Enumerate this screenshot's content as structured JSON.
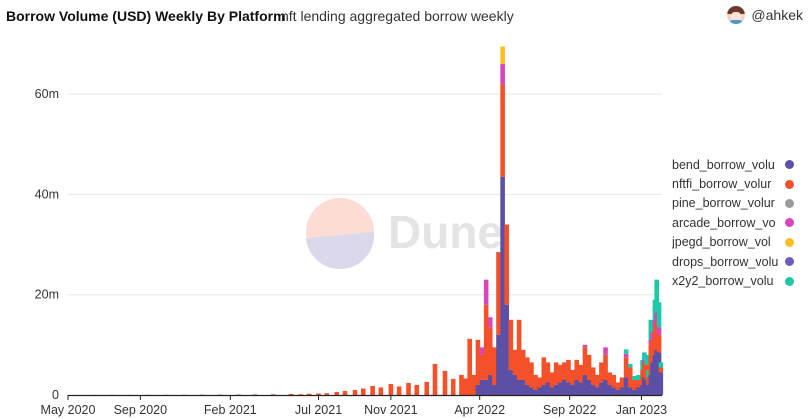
{
  "header": {
    "title": "Borrow Volume (USD) Weekly By Platform",
    "subtitle": "nft lending aggregated borrow weekly",
    "author": "@ahkek"
  },
  "watermark": "Dune",
  "colors": {
    "bend_borrow_volume": "#5b4fa6",
    "nftfi_borrow_volume": "#f4502a",
    "pine_borrow_volume": "#9b9b9b",
    "arcade_borrow_volume": "#d946b8",
    "jpegd_borrow_volume": "#fbbf24",
    "drops_borrow_volume": "#6b5bbf",
    "x2y2_borrow_volume": "#1cc8a6"
  },
  "chart_data": {
    "type": "bar",
    "stacked": true,
    "x_axis_ticks": [
      "May 2020",
      "Sep 2020",
      "Feb 2021",
      "Jul 2021",
      "Nov 2021",
      "Apr 2022",
      "Sep 2022",
      "Jan 2023"
    ],
    "y_axis_ticks": [
      "0",
      "20m",
      "40m",
      "60m"
    ],
    "ylim": [
      0,
      70000000
    ],
    "grid": "horizontal",
    "legend_position": "right",
    "series_order": [
      "bend_borrow_volume",
      "drops_borrow_volume",
      "nftfi_borrow_volume",
      "pine_borrow_volume",
      "arcade_borrow_volume",
      "jpegd_borrow_volume",
      "x2y2_borrow_volume"
    ],
    "legend": [
      {
        "key": "bend_borrow_volume",
        "label": "bend_borrow_volu"
      },
      {
        "key": "nftfi_borrow_volume",
        "label": "nftfi_borrow_volur"
      },
      {
        "key": "pine_borrow_volume",
        "label": "pine_borrow_volur"
      },
      {
        "key": "arcade_borrow_volume",
        "label": "arcade_borrow_vo"
      },
      {
        "key": "jpegd_borrow_volume",
        "label": "jpegd_borrow_vol"
      },
      {
        "key": "drops_borrow_volume",
        "label": "drops_borrow_volu"
      },
      {
        "key": "x2y2_borrow_volume",
        "label": "x2y2_borrow_volu"
      }
    ],
    "weeks": [
      {
        "week": "2020-06-15",
        "nftfi_borrow_volume": 20000
      },
      {
        "week": "2020-07-15",
        "nftfi_borrow_volume": 30000
      },
      {
        "week": "2020-08-15",
        "nftfi_borrow_volume": 30000
      },
      {
        "week": "2020-09-15",
        "nftfi_borrow_volume": 40000
      },
      {
        "week": "2020-10-15",
        "nftfi_borrow_volume": 40000
      },
      {
        "week": "2020-11-15",
        "nftfi_borrow_volume": 50000
      },
      {
        "week": "2020-12-15",
        "nftfi_borrow_volume": 60000
      },
      {
        "week": "2021-01-15",
        "nftfi_borrow_volume": 80000
      },
      {
        "week": "2021-02-15",
        "nftfi_borrow_volume": 100000
      },
      {
        "week": "2021-03-15",
        "nftfi_borrow_volume": 120000
      },
      {
        "week": "2021-04-15",
        "nftfi_borrow_volume": 150000
      },
      {
        "week": "2021-05-15",
        "nftfi_borrow_volume": 200000
      },
      {
        "week": "2021-06-01",
        "nftfi_borrow_volume": 150000
      },
      {
        "week": "2021-06-15",
        "nftfi_borrow_volume": 250000
      },
      {
        "week": "2021-07-01",
        "nftfi_borrow_volume": 300000
      },
      {
        "week": "2021-07-15",
        "nftfi_borrow_volume": 350000
      },
      {
        "week": "2021-08-01",
        "nftfi_borrow_volume": 600000
      },
      {
        "week": "2021-08-15",
        "nftfi_borrow_volume": 800000
      },
      {
        "week": "2021-09-01",
        "nftfi_borrow_volume": 1000000
      },
      {
        "week": "2021-09-15",
        "nftfi_borrow_volume": 1300000
      },
      {
        "week": "2021-10-01",
        "nftfi_borrow_volume": 1800000
      },
      {
        "week": "2021-10-15",
        "nftfi_borrow_volume": 1500000
      },
      {
        "week": "2021-11-01",
        "nftfi_borrow_volume": 2200000
      },
      {
        "week": "2021-11-15",
        "nftfi_borrow_volume": 1700000
      },
      {
        "week": "2021-12-01",
        "nftfi_borrow_volume": 2400000
      },
      {
        "week": "2021-12-15",
        "nftfi_borrow_volume": 2000000
      },
      {
        "week": "2022-01-01",
        "nftfi_borrow_volume": 2600000
      },
      {
        "week": "2022-01-15",
        "nftfi_borrow_volume": 6200000
      },
      {
        "week": "2022-02-01",
        "nftfi_borrow_volume": 4800000
      },
      {
        "week": "2022-02-15",
        "nftfi_borrow_volume": 3200000
      },
      {
        "week": "2022-03-01",
        "nftfi_borrow_volume": 4000000
      },
      {
        "week": "2022-03-08",
        "nftfi_borrow_volume": 3300000
      },
      {
        "week": "2022-03-15",
        "nftfi_borrow_volume": 11200000
      },
      {
        "week": "2022-03-22",
        "nftfi_borrow_volume": 4000000
      },
      {
        "week": "2022-03-29",
        "bend_borrow_volume": 2000000,
        "nftfi_borrow_volume": 9000000
      },
      {
        "week": "2022-04-05",
        "bend_borrow_volume": 3000000,
        "nftfi_borrow_volume": 5000000,
        "arcade_borrow_volume": 1500000
      },
      {
        "week": "2022-04-12",
        "bend_borrow_volume": 3000000,
        "nftfi_borrow_volume": 15000000,
        "arcade_borrow_volume": 5000000
      },
      {
        "week": "2022-04-19",
        "bend_borrow_volume": 4000000,
        "nftfi_borrow_volume": 9500000,
        "arcade_borrow_volume": 2000000
      },
      {
        "week": "2022-04-26",
        "bend_borrow_volume": 2000000,
        "nftfi_borrow_volume": 7500000
      },
      {
        "week": "2022-05-03",
        "bend_borrow_volume": 12000000,
        "nftfi_borrow_volume": 16500000
      },
      {
        "week": "2022-05-10",
        "bend_borrow_volume": 43500000,
        "nftfi_borrow_volume": 18500000,
        "arcade_borrow_volume": 4000000,
        "jpegd_borrow_volume": 3500000
      },
      {
        "week": "2022-05-17",
        "bend_borrow_volume": 18000000,
        "nftfi_borrow_volume": 16000000
      },
      {
        "week": "2022-05-24",
        "bend_borrow_volume": 5000000,
        "nftfi_borrow_volume": 10000000
      },
      {
        "week": "2022-05-31",
        "bend_borrow_volume": 4000000,
        "nftfi_borrow_volume": 5000000
      },
      {
        "week": "2022-06-07",
        "bend_borrow_volume": 3000000,
        "nftfi_borrow_volume": 12000000
      },
      {
        "week": "2022-06-14",
        "bend_borrow_volume": 3000000,
        "nftfi_borrow_volume": 6000000
      },
      {
        "week": "2022-06-21",
        "bend_borrow_volume": 2000000,
        "nftfi_borrow_volume": 5500000
      },
      {
        "week": "2022-06-28",
        "bend_borrow_volume": 1500000,
        "nftfi_borrow_volume": 5000000
      },
      {
        "week": "2022-07-05",
        "bend_borrow_volume": 1000000,
        "nftfi_borrow_volume": 3000000
      },
      {
        "week": "2022-07-12",
        "bend_borrow_volume": 1500000,
        "nftfi_borrow_volume": 2000000
      },
      {
        "week": "2022-07-19",
        "bend_borrow_volume": 2000000,
        "nftfi_borrow_volume": 5500000
      },
      {
        "week": "2022-07-26",
        "bend_borrow_volume": 2500000,
        "nftfi_borrow_volume": 4000000
      },
      {
        "week": "2022-08-02",
        "bend_borrow_volume": 1500000,
        "nftfi_borrow_volume": 3000000
      },
      {
        "week": "2022-08-09",
        "bend_borrow_volume": 2000000,
        "nftfi_borrow_volume": 4500000
      },
      {
        "week": "2022-08-16",
        "bend_borrow_volume": 2500000,
        "nftfi_borrow_volume": 3500000
      },
      {
        "week": "2022-08-23",
        "bend_borrow_volume": 3000000,
        "nftfi_borrow_volume": 3500000
      },
      {
        "week": "2022-08-30",
        "bend_borrow_volume": 2500000,
        "nftfi_borrow_volume": 4500000
      },
      {
        "week": "2022-09-06",
        "bend_borrow_volume": 2000000,
        "nftfi_borrow_volume": 3000000
      },
      {
        "week": "2022-09-13",
        "bend_borrow_volume": 3000000,
        "nftfi_borrow_volume": 4000000
      },
      {
        "week": "2022-09-20",
        "bend_borrow_volume": 2500000,
        "nftfi_borrow_volume": 3500000
      },
      {
        "week": "2022-09-27",
        "bend_borrow_volume": 4000000,
        "nftfi_borrow_volume": 5500000,
        "arcade_borrow_volume": 500000
      },
      {
        "week": "2022-10-04",
        "bend_borrow_volume": 3000000,
        "nftfi_borrow_volume": 5000000
      },
      {
        "week": "2022-10-11",
        "bend_borrow_volume": 2000000,
        "nftfi_borrow_volume": 3500000
      },
      {
        "week": "2022-10-18",
        "bend_borrow_volume": 1500000,
        "nftfi_borrow_volume": 2500000
      },
      {
        "week": "2022-10-25",
        "bend_borrow_volume": 2500000,
        "nftfi_borrow_volume": 4000000
      },
      {
        "week": "2022-11-01",
        "bend_borrow_volume": 3000000,
        "nftfi_borrow_volume": 5000000,
        "arcade_borrow_volume": 1500000
      },
      {
        "week": "2022-11-08",
        "bend_borrow_volume": 2000000,
        "nftfi_borrow_volume": 2500000
      },
      {
        "week": "2022-11-15",
        "bend_borrow_volume": 1500000,
        "nftfi_borrow_volume": 2500000
      },
      {
        "week": "2022-11-22",
        "bend_borrow_volume": 1000000,
        "nftfi_borrow_volume": 1500000
      },
      {
        "week": "2022-11-29",
        "bend_borrow_volume": 1500000,
        "nftfi_borrow_volume": 2000000
      },
      {
        "week": "2022-12-06",
        "bend_borrow_volume": 3500000,
        "nftfi_borrow_volume": 4000000,
        "arcade_borrow_volume": 700000,
        "x2y2_borrow_volume": 900000
      },
      {
        "week": "2022-12-13",
        "bend_borrow_volume": 1500000,
        "nftfi_borrow_volume": 4000000,
        "x2y2_borrow_volume": 700000
      },
      {
        "week": "2022-12-20",
        "bend_borrow_volume": 1000000,
        "nftfi_borrow_volume": 2000000,
        "x2y2_borrow_volume": 800000
      },
      {
        "week": "2022-12-27",
        "bend_borrow_volume": 1500000,
        "nftfi_borrow_volume": 1500000,
        "x2y2_borrow_volume": 1000000
      },
      {
        "week": "2023-01-03",
        "bend_borrow_volume": 2000000,
        "nftfi_borrow_volume": 3000000,
        "x2y2_borrow_volume": 2000000
      },
      {
        "week": "2023-01-06",
        "bend_borrow_volume": 3500000,
        "nftfi_borrow_volume": 3000000,
        "arcade_borrow_volume": 500000,
        "x2y2_borrow_volume": 1500000
      },
      {
        "week": "2023-01-10",
        "bend_borrow_volume": 3000000,
        "nftfi_borrow_volume": 3000000,
        "x2y2_borrow_volume": 2000000
      },
      {
        "week": "2023-01-13",
        "bend_borrow_volume": 2000000,
        "nftfi_borrow_volume": 1500000,
        "x2y2_borrow_volume": 1500000
      },
      {
        "week": "2023-01-17",
        "bend_borrow_volume": 4000000,
        "nftfi_borrow_volume": 6000000,
        "arcade_borrow_volume": 1000000,
        "x2y2_borrow_volume": 4000000
      },
      {
        "week": "2023-01-20",
        "bend_borrow_volume": 6500000,
        "nftfi_borrow_volume": 4500000,
        "arcade_borrow_volume": 1500000,
        "x2y2_borrow_volume": 1500000
      },
      {
        "week": "2023-01-24",
        "bend_borrow_volume": 8000000,
        "nftfi_borrow_volume": 5000000,
        "arcade_borrow_volume": 2000000,
        "x2y2_borrow_volume": 4000000
      },
      {
        "week": "2023-01-27",
        "bend_borrow_volume": 9000000,
        "nftfi_borrow_volume": 5500000,
        "arcade_borrow_volume": 2000000,
        "x2y2_borrow_volume": 6500000
      },
      {
        "week": "2023-01-31",
        "bend_borrow_volume": 8500000,
        "nftfi_borrow_volume": 3500000,
        "arcade_borrow_volume": 1500000,
        "x2y2_borrow_volume": 5000000
      },
      {
        "week": "2023-02-03",
        "bend_borrow_volume": 4500000,
        "nftfi_borrow_volume": 1000000,
        "x2y2_borrow_volume": 1000000
      }
    ]
  }
}
